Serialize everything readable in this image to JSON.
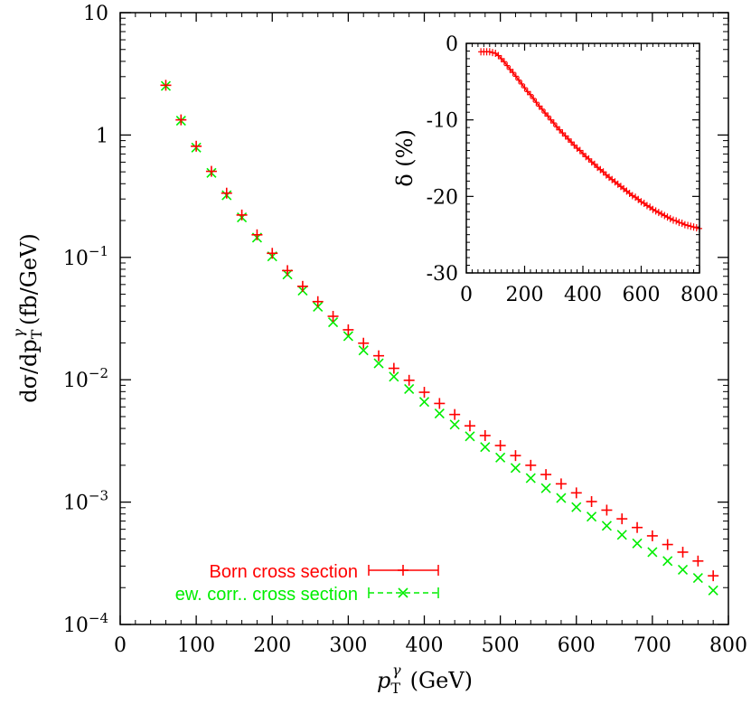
{
  "chart_data": [
    {
      "type": "scatter",
      "scale": {
        "y": "log"
      },
      "xlim": [
        0,
        800
      ],
      "ylim": [
        0.0001,
        10
      ],
      "x_ticks": [
        0,
        100,
        200,
        300,
        400,
        500,
        600,
        700,
        800
      ],
      "x_tick_labels": [
        "0",
        "100",
        "200",
        "300",
        "400",
        "500",
        "600",
        "700",
        "800"
      ],
      "y_ticks": [
        {
          "value": 10,
          "base": "10",
          "exp": ""
        },
        {
          "value": 1,
          "base": "1",
          "exp": ""
        },
        {
          "value": 0.1,
          "base": "10",
          "exp": "−1"
        },
        {
          "value": 0.01,
          "base": "10",
          "exp": "−2"
        },
        {
          "value": 0.001,
          "base": "10",
          "exp": "−3"
        },
        {
          "value": 0.0001,
          "base": "10",
          "exp": "−4"
        }
      ],
      "xlabel_base": "p",
      "xlabel_sub": "T",
      "xlabel_sup": "γ",
      "xlabel_unit": "(GeV)",
      "ylabel": "dσ/dp",
      "ylabel_sub": "T",
      "ylabel_sup": "γ",
      "ylabel_unit": "(fb/GeV)",
      "legend_position": "bottom-left",
      "series": [
        {
          "name": "Born cross section",
          "color": "#ff0000",
          "marker": "plus",
          "x": [
            60,
            80,
            100,
            120,
            140,
            160,
            180,
            200,
            220,
            240,
            260,
            280,
            300,
            320,
            340,
            360,
            380,
            400,
            420,
            440,
            460,
            480,
            500,
            520,
            540,
            560,
            580,
            600,
            620,
            640,
            660,
            680,
            700,
            720,
            740,
            760,
            780
          ],
          "values": [
            2.55,
            1.33,
            0.81,
            0.505,
            0.335,
            0.222,
            0.153,
            0.108,
            0.078,
            0.058,
            0.0435,
            0.033,
            0.0256,
            0.0199,
            0.0157,
            0.0124,
            0.0099,
            0.0079,
            0.0064,
            0.0052,
            0.0042,
            0.0035,
            0.0029,
            0.0024,
            0.002,
            0.00168,
            0.00141,
            0.00119,
            0.00101,
            0.00086,
            0.00073,
            0.00062,
            0.00053,
            0.00045,
            0.00039,
            0.00033,
            0.00025
          ]
        },
        {
          "name": "ew. corr.. cross section",
          "color": "#00ee00",
          "marker": "x",
          "x": [
            60,
            80,
            100,
            120,
            140,
            160,
            180,
            200,
            220,
            240,
            260,
            280,
            300,
            320,
            340,
            360,
            380,
            400,
            420,
            440,
            460,
            480,
            500,
            520,
            540,
            560,
            580,
            600,
            620,
            640,
            660,
            680,
            700,
            720,
            740,
            760,
            780
          ],
          "values": [
            2.52,
            1.31,
            0.79,
            0.49,
            0.322,
            0.212,
            0.145,
            0.102,
            0.0725,
            0.0535,
            0.0395,
            0.0295,
            0.0227,
            0.0174,
            0.0136,
            0.0106,
            0.0084,
            0.0066,
            0.0053,
            0.0043,
            0.00345,
            0.00282,
            0.00231,
            0.0019,
            0.00157,
            0.0013,
            0.00108,
            0.00091,
            0.00076,
            0.00064,
            0.00054,
            0.00046,
            0.00039,
            0.00033,
            0.00028,
            0.00024,
            0.00019
          ]
        }
      ]
    },
    {
      "type": "line",
      "xlim": [
        0,
        800
      ],
      "ylim": [
        -30,
        0
      ],
      "x_ticks": [
        0,
        200,
        400,
        600,
        800
      ],
      "x_tick_labels": [
        "0",
        "200",
        "400",
        "600",
        "800"
      ],
      "y_ticks": [
        0,
        -10,
        -20,
        -30
      ],
      "y_tick_labels": [
        "0",
        "-10",
        "-20",
        "-30"
      ],
      "ylabel": "δ (%)",
      "series": [
        {
          "color": "#ff0000",
          "x": [
            50,
            60,
            70,
            80,
            90,
            100,
            110,
            120,
            130,
            140,
            150,
            160,
            170,
            180,
            190,
            200,
            210,
            220,
            230,
            240,
            250,
            260,
            270,
            280,
            290,
            300,
            310,
            320,
            330,
            340,
            350,
            360,
            370,
            380,
            390,
            400,
            410,
            420,
            430,
            440,
            450,
            460,
            470,
            480,
            490,
            500,
            510,
            520,
            530,
            540,
            550,
            560,
            570,
            580,
            590,
            600,
            610,
            620,
            630,
            640,
            650,
            660,
            670,
            680,
            690,
            700,
            710,
            720,
            730,
            740,
            750,
            760,
            770,
            780,
            790,
            800
          ],
          "values": [
            -1.1,
            -1.1,
            -1.1,
            -1.1,
            -1.2,
            -1.3,
            -1.6,
            -2.0,
            -2.4,
            -2.9,
            -3.4,
            -3.8,
            -4.3,
            -4.8,
            -5.3,
            -5.8,
            -6.3,
            -6.7,
            -7.2,
            -7.7,
            -8.2,
            -8.6,
            -9.1,
            -9.5,
            -10.0,
            -10.4,
            -10.9,
            -11.3,
            -11.7,
            -12.1,
            -12.5,
            -12.9,
            -13.3,
            -13.7,
            -14.0,
            -14.4,
            -14.8,
            -15.1,
            -15.5,
            -15.8,
            -16.2,
            -16.5,
            -16.8,
            -17.2,
            -17.5,
            -17.8,
            -18.1,
            -18.4,
            -18.7,
            -19.0,
            -19.3,
            -19.6,
            -19.9,
            -20.1,
            -20.4,
            -20.7,
            -20.9,
            -21.2,
            -21.4,
            -21.7,
            -21.9,
            -22.1,
            -22.3,
            -22.5,
            -22.7,
            -22.9,
            -23.1,
            -23.2,
            -23.4,
            -23.5,
            -23.7,
            -23.8,
            -23.9,
            -24.0,
            -24.1,
            -24.2
          ]
        }
      ]
    }
  ]
}
